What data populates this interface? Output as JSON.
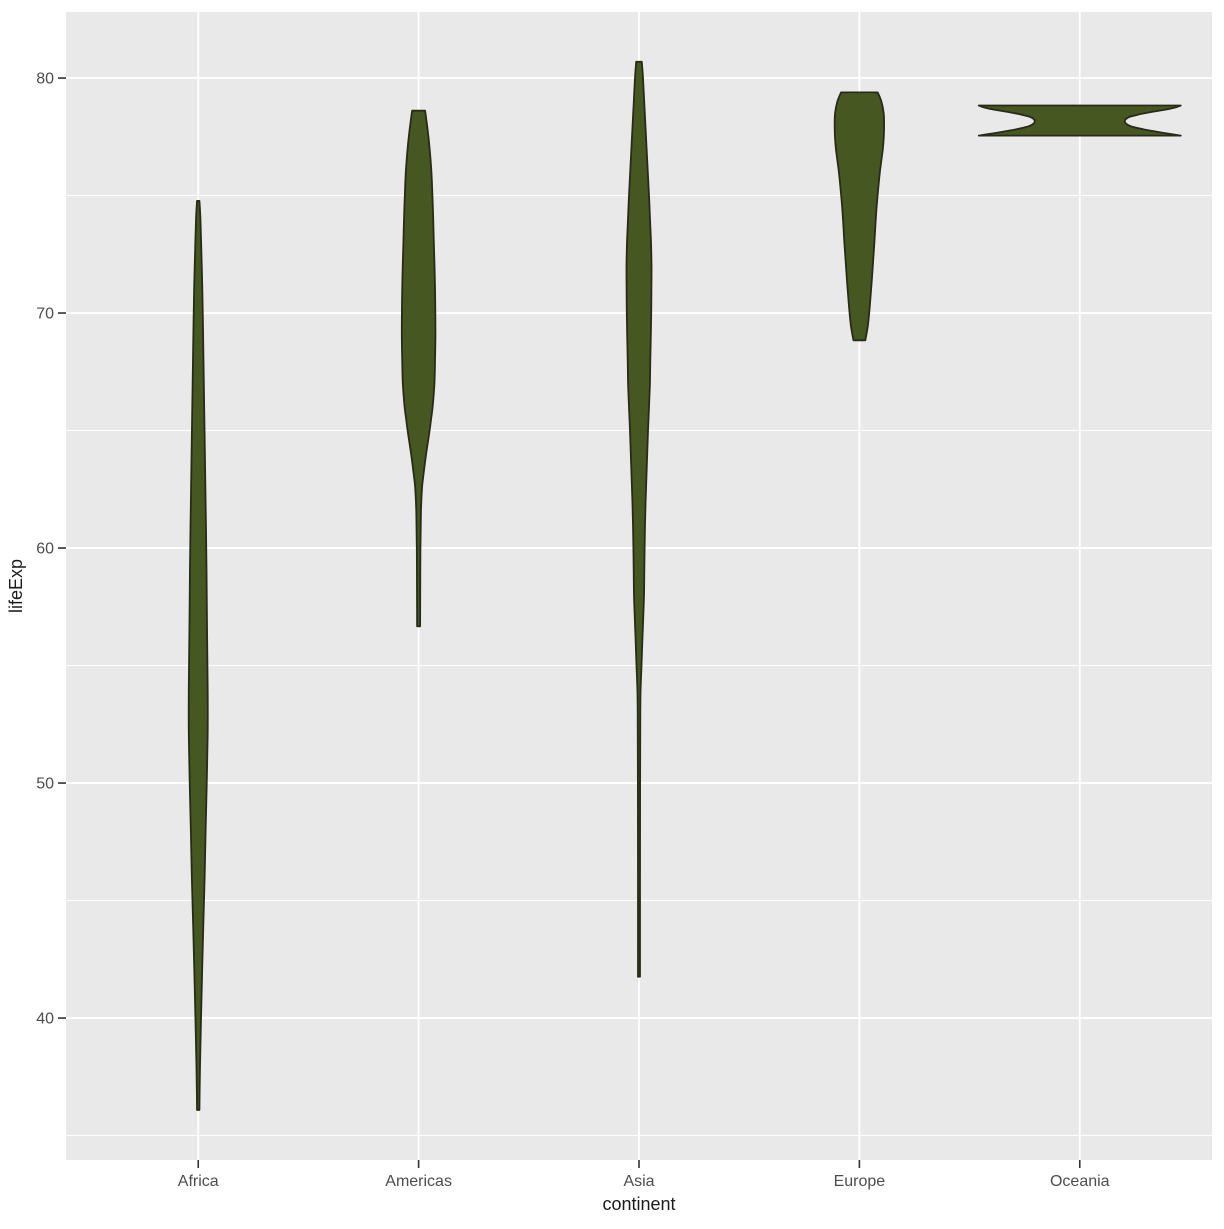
{
  "chart_data": {
    "type": "violin",
    "title": "",
    "xlabel": "continent",
    "ylabel": "lifeExp",
    "categories": [
      "Africa",
      "Americas",
      "Asia",
      "Europe",
      "Oceania"
    ],
    "y_ticks": [
      40,
      50,
      60,
      70,
      80
    ],
    "y_minor_ticks": [
      35,
      45,
      55,
      65,
      75
    ],
    "ylim": [
      33.96,
      82.81
    ],
    "grid": "on",
    "legend": "none",
    "colors": {
      "violin_fill": "#465722",
      "violin_stroke": "#272b18",
      "panel_background": "#E9E9E9",
      "grid_major": "#FFFFFF",
      "grid_minor": "#FFFFFF",
      "tick_mark": "#333333",
      "tick_label": "#4D4D4D",
      "axis_title": "#1a1a1a"
    },
    "series": [
      {
        "name": "Africa",
        "min": 36.09,
        "max": 74.77,
        "profile": [
          [
            74.77,
            1.2
          ],
          [
            74.0,
            2.2
          ],
          [
            72.5,
            3.2
          ],
          [
            71.0,
            4.1
          ],
          [
            69.0,
            4.9
          ],
          [
            67.0,
            5.6
          ],
          [
            65.0,
            6.3
          ],
          [
            63.0,
            7.0
          ],
          [
            61.0,
            7.7
          ],
          [
            59.0,
            8.3
          ],
          [
            57.0,
            8.7
          ],
          [
            55.0,
            9.2
          ],
          [
            53.5,
            9.5
          ],
          [
            52.0,
            9.4
          ],
          [
            50.0,
            8.5
          ],
          [
            48.0,
            7.4
          ],
          [
            46.0,
            6.4
          ],
          [
            44.0,
            5.1
          ],
          [
            42.0,
            3.9
          ],
          [
            40.0,
            2.8
          ],
          [
            38.0,
            1.8
          ],
          [
            36.9,
            1.4
          ],
          [
            36.09,
            1.2
          ]
        ]
      },
      {
        "name": "Americas",
        "min": 56.67,
        "max": 78.61,
        "profile": [
          [
            78.61,
            6.5
          ],
          [
            77.8,
            9.0
          ],
          [
            77.0,
            11.0
          ],
          [
            76.0,
            12.8
          ],
          [
            75.0,
            13.8
          ],
          [
            74.0,
            14.6
          ],
          [
            73.0,
            15.2
          ],
          [
            72.0,
            15.9
          ],
          [
            71.0,
            16.4
          ],
          [
            70.0,
            16.7
          ],
          [
            69.0,
            16.8
          ],
          [
            68.0,
            16.4
          ],
          [
            67.0,
            15.8
          ],
          [
            66.0,
            14.0
          ],
          [
            65.5,
            12.5
          ],
          [
            65.0,
            11.0
          ],
          [
            64.0,
            7.5
          ],
          [
            63.0,
            4.5
          ],
          [
            62.5,
            3.3
          ],
          [
            61.5,
            2.3
          ],
          [
            60.0,
            1.8
          ],
          [
            58.0,
            1.6
          ],
          [
            56.67,
            1.5
          ]
        ]
      },
      {
        "name": "Asia",
        "min": 41.76,
        "max": 80.69,
        "profile": [
          [
            80.69,
            2.8
          ],
          [
            80.0,
            4.0
          ],
          [
            79.0,
            5.2
          ],
          [
            78.0,
            6.4
          ],
          [
            77.0,
            7.6
          ],
          [
            76.0,
            8.8
          ],
          [
            75.0,
            10.0
          ],
          [
            74.0,
            11.0
          ],
          [
            73.0,
            12.0
          ],
          [
            72.0,
            12.5
          ],
          [
            71.0,
            12.4
          ],
          [
            70.0,
            12.2
          ],
          [
            69.0,
            11.8
          ],
          [
            68.0,
            11.3
          ],
          [
            67.0,
            10.9
          ],
          [
            66.0,
            10.0
          ],
          [
            65.0,
            9.0
          ],
          [
            64.0,
            8.2
          ],
          [
            63.0,
            7.4
          ],
          [
            62.0,
            6.6
          ],
          [
            61.0,
            6.0
          ],
          [
            60.0,
            5.6
          ],
          [
            59.0,
            5.3
          ],
          [
            58.0,
            5.0
          ],
          [
            57.0,
            4.2
          ],
          [
            56.0,
            3.3
          ],
          [
            55.0,
            2.5
          ],
          [
            54.0,
            1.6
          ],
          [
            53.0,
            1.3
          ],
          [
            50.0,
            1.1
          ],
          [
            46.0,
            1.0
          ],
          [
            41.76,
            1.0
          ]
        ]
      },
      {
        "name": "Europe",
        "min": 68.84,
        "max": 79.39,
        "profile": [
          [
            79.39,
            18.3
          ],
          [
            79.0,
            22.0
          ],
          [
            78.5,
            24.3
          ],
          [
            78.0,
            24.7
          ],
          [
            77.5,
            24.4
          ],
          [
            77.0,
            23.5
          ],
          [
            76.5,
            22.0
          ],
          [
            76.0,
            20.5
          ],
          [
            75.5,
            19.3
          ],
          [
            75.0,
            18.2
          ],
          [
            74.5,
            17.2
          ],
          [
            74.0,
            16.4
          ],
          [
            73.5,
            15.7
          ],
          [
            73.0,
            15.0
          ],
          [
            72.5,
            14.2
          ],
          [
            72.0,
            13.4
          ],
          [
            71.5,
            12.6
          ],
          [
            71.0,
            11.7
          ],
          [
            70.5,
            10.8
          ],
          [
            70.0,
            9.8
          ],
          [
            69.5,
            8.6
          ],
          [
            69.2,
            7.5
          ],
          [
            68.84,
            5.9
          ]
        ]
      },
      {
        "name": "Oceania",
        "min": 77.55,
        "max": 78.83,
        "profile": [
          [
            78.83,
            101
          ],
          [
            78.75,
            96
          ],
          [
            78.65,
            85
          ],
          [
            78.55,
            71
          ],
          [
            78.45,
            59
          ],
          [
            78.35,
            50
          ],
          [
            78.25,
            46
          ],
          [
            78.15,
            45
          ],
          [
            78.05,
            46.5
          ],
          [
            77.95,
            51
          ],
          [
            77.85,
            60
          ],
          [
            77.75,
            72
          ],
          [
            77.65,
            86
          ],
          [
            77.55,
            101
          ]
        ]
      }
    ]
  }
}
